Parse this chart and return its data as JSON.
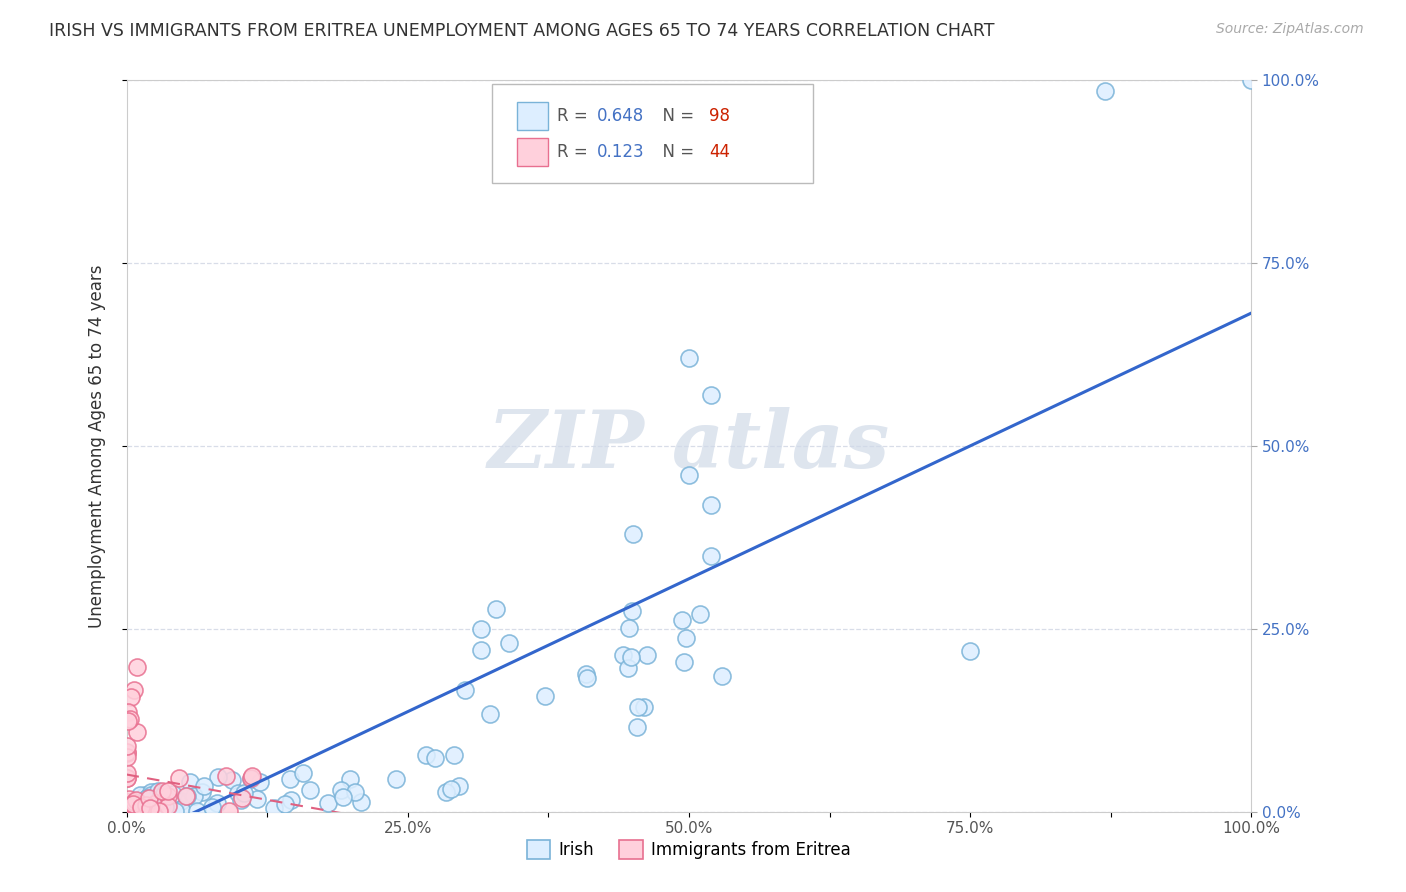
{
  "title": "IRISH VS IMMIGRANTS FROM ERITREA UNEMPLOYMENT AMONG AGES 65 TO 74 YEARS CORRELATION CHART",
  "source": "Source: ZipAtlas.com",
  "ylabel": "Unemployment Among Ages 65 to 74 years",
  "xlim": [
    0,
    1.0
  ],
  "ylim": [
    0,
    1.0
  ],
  "xtick_labels": [
    "0.0%",
    "",
    "25.0%",
    "",
    "50.0%",
    "",
    "75.0%",
    "",
    "100.0%"
  ],
  "xtick_vals": [
    0,
    0.125,
    0.25,
    0.375,
    0.5,
    0.625,
    0.75,
    0.875,
    1.0
  ],
  "right_ytick_labels": [
    "100.0%",
    "75.0%",
    "50.0%",
    "25.0%",
    "0.0%"
  ],
  "right_ytick_vals": [
    1.0,
    0.75,
    0.5,
    0.25,
    0.0
  ],
  "irish_edge_color": "#7ab3d8",
  "irish_face_color": "#ddeeff",
  "eritrea_edge_color": "#e87090",
  "eritrea_face_color": "#ffd0dc",
  "irish_R": 0.648,
  "irish_N": 98,
  "eritrea_R": 0.123,
  "eritrea_N": 44,
  "irish_line_color": "#3366cc",
  "eritrea_line_color": "#e06080",
  "background_color": "#ffffff",
  "grid_color": "#d8dde8",
  "watermark_color": "#d0dae8"
}
